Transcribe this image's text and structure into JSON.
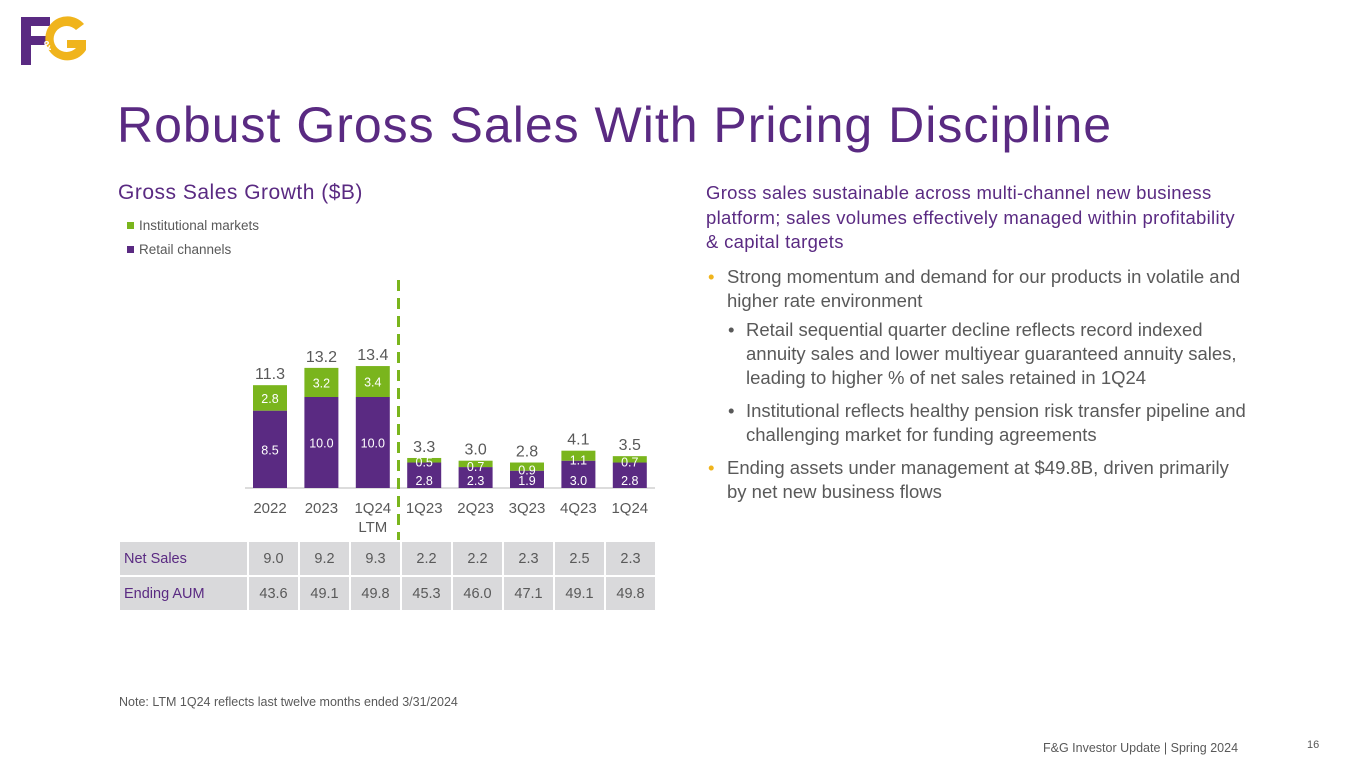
{
  "logo_text": "F&G",
  "title": "Robust Gross Sales With Pricing Discipline",
  "colors": {
    "purple": "#5a2a82",
    "green": "#7ab51d",
    "gold": "#f0b41c",
    "gray_text": "#595959",
    "table_bg": "#d9d9db"
  },
  "chart_data": {
    "type": "bar",
    "stacked": true,
    "title": "Gross Sales Growth ($B)",
    "categories": [
      "2022",
      "2023",
      "1Q24",
      "1Q23",
      "2Q23",
      "3Q23",
      "4Q23",
      "1Q24"
    ],
    "category_sublabels": [
      "",
      "",
      "LTM",
      "",
      "",
      "",
      "",
      ""
    ],
    "series": [
      {
        "name": "Retail channels",
        "color": "#5a2a82",
        "values": [
          8.5,
          10.0,
          10.0,
          2.8,
          2.3,
          1.9,
          3.0,
          2.8
        ]
      },
      {
        "name": "Institutional markets",
        "color": "#7ab51d",
        "values": [
          2.8,
          3.2,
          3.4,
          0.5,
          0.7,
          0.9,
          1.1,
          0.7
        ]
      }
    ],
    "value_labels": {
      "retail": [
        "8.5",
        "10.0",
        "10.0",
        "2.8",
        "2.3",
        "1.9",
        "3.0",
        "2.8"
      ],
      "institutional": [
        "2.8",
        "3.2",
        "3.4",
        "0.5",
        "0.7",
        "0.9",
        "1.1",
        "0.7"
      ]
    },
    "totals": [
      11.3,
      13.2,
      13.4,
      3.3,
      3.0,
      2.8,
      4.1,
      3.5
    ],
    "total_labels": [
      "11.3",
      "13.2",
      "13.4",
      "3.3",
      "3.0",
      "2.8",
      "4.1",
      "3.5"
    ],
    "legend": [
      "Institutional markets",
      "Retail channels"
    ],
    "legend_position": "top-left",
    "divider_after_index": 2,
    "ylim": [
      0,
      14
    ],
    "grid": false
  },
  "table": {
    "rows": [
      {
        "label": "Net Sales",
        "values": [
          "9.0",
          "9.2",
          "9.3",
          "2.2",
          "2.2",
          "2.3",
          "2.5",
          "2.3"
        ]
      },
      {
        "label": "Ending AUM",
        "values": [
          "43.6",
          "49.1",
          "49.8",
          "45.3",
          "46.0",
          "47.1",
          "49.1",
          "49.8"
        ]
      }
    ]
  },
  "right": {
    "heading": "Gross sales sustainable across multi-channel new business platform; sales volumes effectively managed within profitability & capital targets",
    "bullets": [
      "Strong momentum and demand for our products in volatile and higher rate environment",
      "Ending assets under management at $49.8B, driven primarily by net new business flows"
    ],
    "sub_bullets": [
      "Retail sequential quarter decline reflects record indexed annuity sales and lower multiyear guaranteed annuity sales, leading to higher % of net sales retained in 1Q24",
      "Institutional reflects healthy pension risk transfer pipeline and challenging market for funding agreements"
    ],
    "bullet_glyph": "•"
  },
  "note": "Note: LTM 1Q24 reflects last twelve months ended 3/31/2024",
  "footer": "F&G Investor Update | Spring 2024",
  "page_number": "16"
}
